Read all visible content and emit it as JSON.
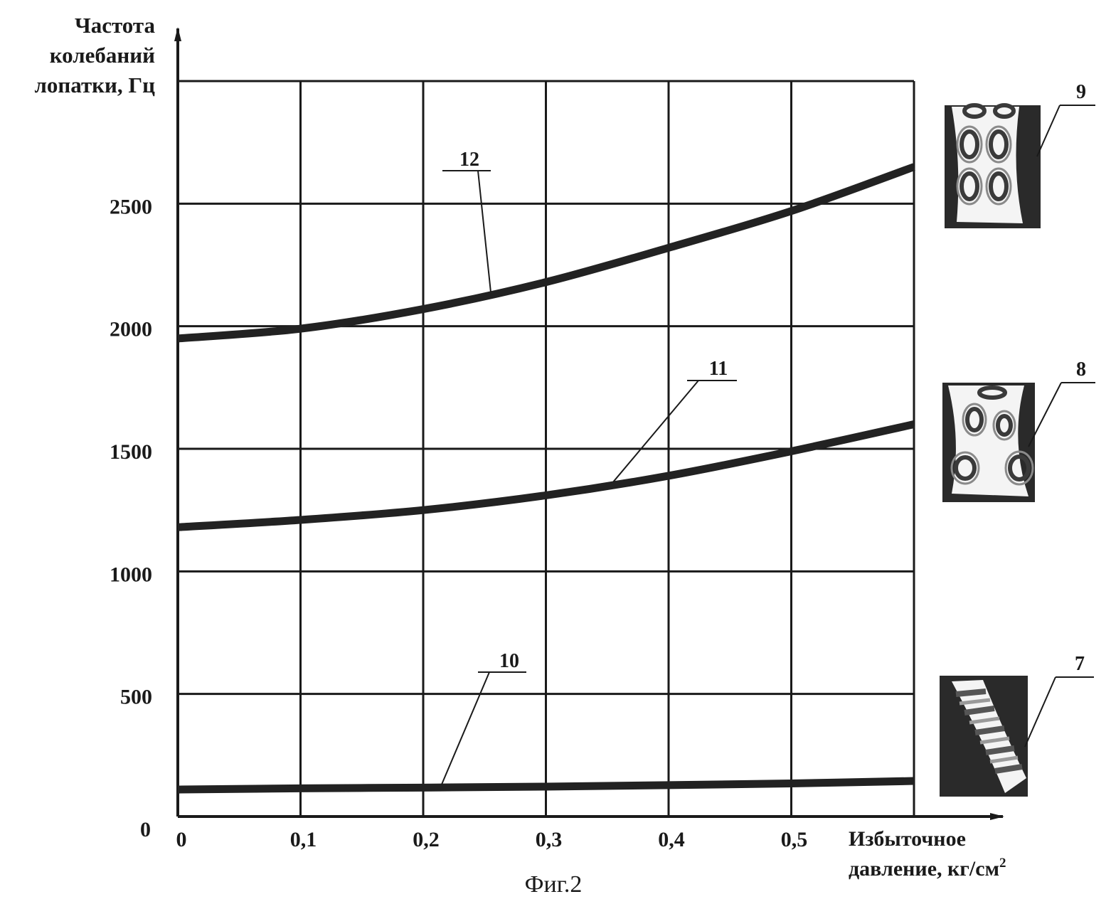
{
  "chart_data": {
    "type": "line",
    "title": "",
    "ylabel_lines": [
      "Частота",
      "колебаний",
      "лопатки, Гц"
    ],
    "xlabel_lines": [
      "Избыточное",
      "давление, кг/см"
    ],
    "xlabel_superscript": "2",
    "figure_caption": "Фиг.2",
    "xlim": [
      0,
      0.6
    ],
    "ylim": [
      0,
      3000
    ],
    "x_ticks": [
      {
        "v": 0,
        "label": "0"
      },
      {
        "v": 0.1,
        "label": "0,1"
      },
      {
        "v": 0.2,
        "label": "0,2"
      },
      {
        "v": 0.3,
        "label": "0,3"
      },
      {
        "v": 0.4,
        "label": "0,4"
      },
      {
        "v": 0.5,
        "label": "0,5"
      }
    ],
    "y_ticks": [
      {
        "v": 0,
        "label": "0"
      },
      {
        "v": 500,
        "label": "500"
      },
      {
        "v": 1000,
        "label": "1000"
      },
      {
        "v": 1500,
        "label": "1500"
      },
      {
        "v": 2000,
        "label": "2000"
      },
      {
        "v": 2500,
        "label": "2500"
      }
    ],
    "grid": true,
    "x": [
      0,
      0.1,
      0.2,
      0.3,
      0.4,
      0.5,
      0.6
    ],
    "series": [
      {
        "label": "10",
        "values": [
          110,
          115,
          118,
          122,
          128,
          135,
          145
        ]
      },
      {
        "label": "11",
        "values": [
          1180,
          1210,
          1250,
          1310,
          1390,
          1490,
          1600
        ]
      },
      {
        "label": "12",
        "values": [
          1950,
          1990,
          2070,
          2180,
          2320,
          2470,
          2650
        ]
      }
    ],
    "mode_images": [
      {
        "label": "7",
        "name": "mode-shape-1"
      },
      {
        "label": "8",
        "name": "mode-shape-2"
      },
      {
        "label": "9",
        "name": "mode-shape-3"
      }
    ]
  }
}
